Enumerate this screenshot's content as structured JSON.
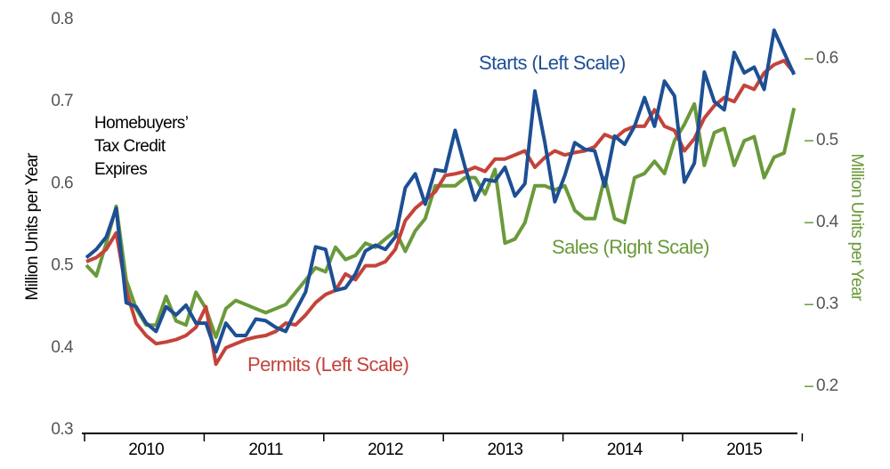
{
  "chart_data": {
    "type": "line",
    "y_label": "Million Units  per Year",
    "y2_label": "Million Units  per Year",
    "y2_color": "#6a9a3a",
    "categories": [
      null,
      null,
      null,
      null,
      null,
      null,
      "2010",
      null,
      null,
      null,
      null,
      null,
      null,
      null,
      null,
      null,
      null,
      null,
      "2011",
      null,
      null,
      null,
      null,
      null,
      null,
      null,
      null,
      null,
      null,
      null,
      "2012",
      null,
      null,
      null,
      null,
      null,
      null,
      null,
      null,
      null,
      null,
      null,
      "2013",
      null,
      null,
      null,
      null,
      null,
      null,
      null,
      null,
      null,
      null,
      null,
      "2014",
      null,
      null,
      null,
      null,
      null,
      null,
      null,
      null,
      null,
      null,
      null,
      "2015",
      null,
      null,
      null,
      null,
      null
    ],
    "ylim": [
      0.3,
      0.8
    ],
    "yticks": [
      0.3,
      0.4,
      0.5,
      0.6,
      0.7,
      0.8
    ],
    "y2lim": [
      0.147,
      0.648
    ],
    "y2ticks": [
      0.2,
      0.3,
      0.4,
      0.5,
      0.6
    ],
    "grid": false,
    "series": [
      {
        "name": "Starts (Left Scale)",
        "color": "#1d4f94",
        "axis": "y",
        "values": [
          0.51,
          0.52,
          0.535,
          0.57,
          0.455,
          0.45,
          0.43,
          0.42,
          0.45,
          0.44,
          0.452,
          0.43,
          0.43,
          0.395,
          0.43,
          0.415,
          0.415,
          0.435,
          0.433,
          0.425,
          0.42,
          0.445,
          0.468,
          0.523,
          0.52,
          0.47,
          0.473,
          0.49,
          0.518,
          0.525,
          0.52,
          0.535,
          0.595,
          0.612,
          0.575,
          0.617,
          0.615,
          0.665,
          0.62,
          0.58,
          0.605,
          0.603,
          0.62,
          0.585,
          0.6,
          0.713,
          0.65,
          0.578,
          0.61,
          0.65,
          0.642,
          0.64,
          0.597,
          0.658,
          0.648,
          0.67,
          0.705,
          0.67,
          0.725,
          0.707,
          0.602,
          0.625,
          0.736,
          0.7,
          0.69,
          0.76,
          0.735,
          0.742,
          0.715,
          0.787,
          0.76,
          0.733
        ]
      },
      {
        "name": "Permits (Left Scale)",
        "color": "#c4433a",
        "axis": "y",
        "values": [
          0.505,
          0.51,
          0.52,
          0.54,
          0.47,
          0.43,
          0.415,
          0.405,
          0.407,
          0.41,
          0.415,
          0.425,
          0.45,
          0.38,
          0.4,
          0.405,
          0.41,
          0.413,
          0.415,
          0.42,
          0.43,
          0.428,
          0.44,
          0.455,
          0.465,
          0.47,
          0.49,
          0.483,
          0.5,
          0.5,
          0.505,
          0.52,
          0.555,
          0.57,
          0.58,
          0.59,
          0.61,
          0.612,
          0.615,
          0.62,
          0.615,
          0.63,
          0.63,
          0.635,
          0.64,
          0.62,
          0.632,
          0.64,
          0.635,
          0.638,
          0.64,
          0.645,
          0.66,
          0.655,
          0.665,
          0.67,
          0.67,
          0.69,
          0.67,
          0.665,
          0.64,
          0.655,
          0.68,
          0.695,
          0.705,
          0.7,
          0.72,
          0.715,
          0.735,
          0.745,
          0.75,
          0.735
        ]
      },
      {
        "name": "Sales (Right Scale)",
        "color": "#6a9a3a",
        "axis": "y2",
        "values": [
          0.348,
          0.335,
          0.375,
          0.42,
          0.33,
          0.295,
          0.275,
          0.275,
          0.31,
          0.28,
          0.275,
          0.315,
          0.295,
          0.26,
          0.295,
          0.305,
          0.3,
          0.295,
          0.29,
          0.295,
          0.3,
          0.315,
          0.33,
          0.345,
          0.34,
          0.37,
          0.355,
          0.36,
          0.375,
          0.37,
          0.38,
          0.39,
          0.365,
          0.39,
          0.405,
          0.445,
          0.445,
          0.445,
          0.455,
          0.455,
          0.435,
          0.465,
          0.375,
          0.38,
          0.4,
          0.445,
          0.445,
          0.44,
          0.445,
          0.415,
          0.405,
          0.405,
          0.455,
          0.405,
          0.4,
          0.455,
          0.46,
          0.475,
          0.46,
          0.5,
          0.52,
          0.545,
          0.47,
          0.51,
          0.515,
          0.47,
          0.5,
          0.505,
          0.455,
          0.48,
          0.485,
          0.54
        ]
      }
    ],
    "annotations": [
      {
        "lines": [
          "Homebuyers’",
          "Tax Credit",
          "Expires"
        ]
      }
    ]
  }
}
